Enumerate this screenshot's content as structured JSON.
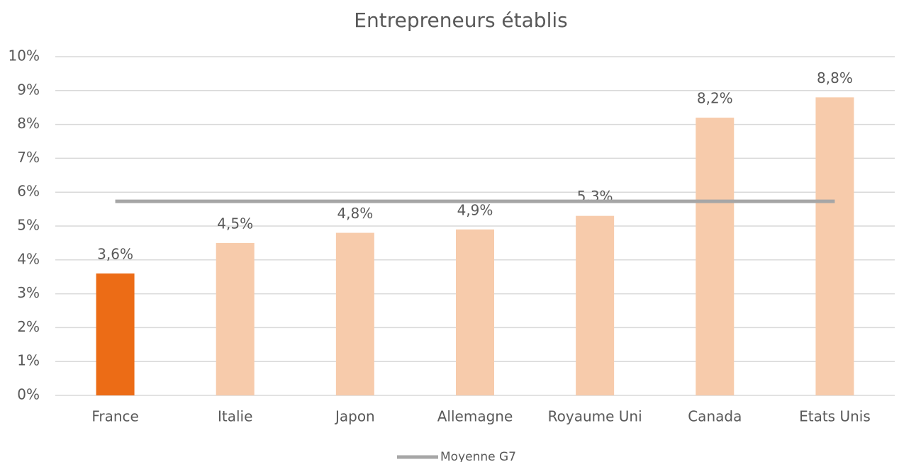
{
  "chart_data": {
    "type": "bar",
    "title": "Entrepreneurs établis",
    "categories": [
      "France",
      "Italie",
      "Japon",
      "Allemagne",
      "Royaume Uni",
      "Canada",
      "Etats Unis"
    ],
    "values": [
      3.6,
      4.5,
      4.8,
      4.9,
      5.3,
      8.2,
      8.8
    ],
    "value_labels": [
      "3,6%",
      "4,5%",
      "4,8%",
      "4,9%",
      "5,3%",
      "8,2%",
      "8,8%"
    ],
    "colors": [
      "#ec6c16",
      "#f7cbab",
      "#f7cbab",
      "#f7cbab",
      "#f7cbab",
      "#f7cbab",
      "#f7cbab"
    ],
    "series": [
      {
        "name": "Moyenne G7",
        "type": "line",
        "color": "#a6a6a6",
        "values": [
          5.73,
          5.73,
          5.73,
          5.73,
          5.73,
          5.73,
          5.73
        ]
      }
    ],
    "ylim": [
      0,
      10
    ],
    "yticks": [
      {
        "value": 0,
        "label": "0%"
      },
      {
        "value": 1,
        "label": "1%"
      },
      {
        "value": 2,
        "label": "2%"
      },
      {
        "value": 3,
        "label": "3%"
      },
      {
        "value": 4,
        "label": "4%"
      },
      {
        "value": 5,
        "label": "5%"
      },
      {
        "value": 6,
        "label": "6%"
      },
      {
        "value": 7,
        "label": "7%"
      },
      {
        "value": 8,
        "label": "8%"
      },
      {
        "value": 9,
        "label": "9%"
      },
      {
        "value": 10,
        "label": "10%"
      }
    ],
    "grid": true,
    "legend": "bottom"
  }
}
